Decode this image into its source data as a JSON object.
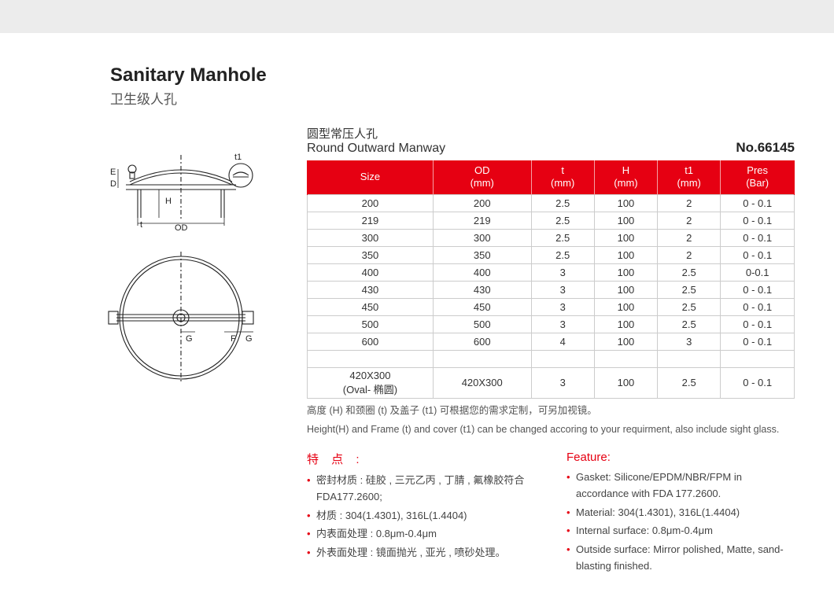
{
  "header": {
    "title_en": "Sanitary Manhole",
    "title_cn": "卫生级人孔"
  },
  "section": {
    "subtitle_cn": "圆型常压人孔",
    "subtitle_en": "Round Outward Manway",
    "part_no": "No.66145"
  },
  "diagram": {
    "labels": {
      "E": "E",
      "D": "D",
      "H": "H",
      "t": "t",
      "OD": "OD",
      "t1": "t1",
      "G": "G",
      "F": "F"
    },
    "stroke": "#222222",
    "stroke_width": 1.1
  },
  "table": {
    "header_bg": "#e60012",
    "header_fg": "#ffffff",
    "border_color": "#cccccc",
    "columns": [
      "Size",
      "OD\n(mm)",
      "t\n(mm)",
      "H\n(mm)",
      "t1\n(mm)",
      "Pres\n(Bar)"
    ],
    "rows": [
      [
        "200",
        "200",
        "2.5",
        "100",
        "2",
        "0 - 0.1"
      ],
      [
        "219",
        "219",
        "2.5",
        "100",
        "2",
        "0 - 0.1"
      ],
      [
        "300",
        "300",
        "2.5",
        "100",
        "2",
        "0 - 0.1"
      ],
      [
        "350",
        "350",
        "2.5",
        "100",
        "2",
        "0 - 0.1"
      ],
      [
        "400",
        "400",
        "3",
        "100",
        "2.5",
        "0-0.1"
      ],
      [
        "430",
        "430",
        "3",
        "100",
        "2.5",
        "0 - 0.1"
      ],
      [
        "450",
        "450",
        "3",
        "100",
        "2.5",
        "0 - 0.1"
      ],
      [
        "500",
        "500",
        "3",
        "100",
        "2.5",
        "0 - 0.1"
      ],
      [
        "600",
        "600",
        "4",
        "100",
        "3",
        "0 - 0.1"
      ]
    ],
    "blank_row": [
      "",
      "",
      "",
      "",
      "",
      ""
    ],
    "oval_row": [
      "420X300\n(Oval- 椭圆)",
      "420X300",
      "3",
      "100",
      "2.5",
      "0 - 0.1"
    ],
    "note_cn": "高度 (H) 和颈圈 (t) 及盖子 (t1) 可根据您的需求定制，可另加视镜。",
    "note_en": "Height(H) and Frame (t) and cover (t1) can be changed accoring to your requirment, also include sight glass."
  },
  "features": {
    "title_cn": "特 点 :",
    "title_en": "Feature:",
    "items_cn": [
      "密封材质 : 硅胶 , 三元乙丙 , 丁腈 , 氟橡胶符合 FDA177.2600;",
      "材质 : 304(1.4301), 316L(1.4404)",
      "内表面处理 : 0.8μm-0.4μm",
      "外表面处理 : 镜面抛光 , 亚光 , 喷砂处理。"
    ],
    "items_en": [
      "Gasket: Silicone/EPDM/NBR/FPM in accordance with FDA 177.2600.",
      "Material: 304(1.4301), 316L(1.4404)",
      "Internal surface: 0.8μm-0.4μm",
      "Outside surface: Mirror polished, Matte, sand-blasting finished."
    ]
  },
  "colors": {
    "accent": "#e60012",
    "text": "#333333",
    "muted": "#555555",
    "bg": "#ffffff",
    "topbar": "#ececec"
  }
}
